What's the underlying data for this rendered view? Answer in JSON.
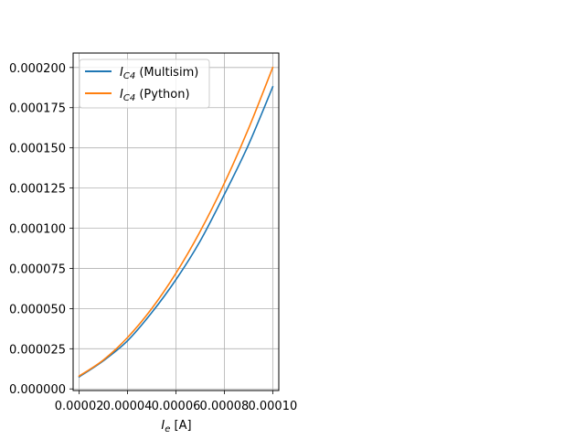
{
  "chart_data": {
    "type": "line",
    "xlabel_main": "I",
    "xlabel_sub": "e",
    "xlabel_unit": " [A]",
    "ylabel": "",
    "xlim": [
      1.75e-05,
      0.0001025
    ],
    "ylim": [
      -1e-06,
      0.000209
    ],
    "xticks": [
      2e-05,
      4e-05,
      6e-05,
      8e-05,
      0.0001
    ],
    "xtick_labels": [
      "0.00002",
      "0.00004",
      "0.00006",
      "0.00008",
      "0.00010"
    ],
    "yticks": [
      0,
      2.5e-05,
      5e-05,
      7.5e-05,
      0.0001,
      0.000125,
      0.00015,
      0.000175,
      0.0002
    ],
    "ytick_labels": [
      "0.000000",
      "0.000025",
      "0.000050",
      "0.000075",
      "0.000100",
      "0.000125",
      "0.000150",
      "0.000175",
      "0.000200"
    ],
    "grid": true,
    "legend_position": "upper-left",
    "x": [
      2e-05,
      3e-05,
      4e-05,
      5e-05,
      6e-05,
      7e-05,
      8e-05,
      9e-05,
      0.0001
    ],
    "series": [
      {
        "name_main": "I",
        "name_sub": "C4",
        "name_rest": " (Multisim)",
        "color": "#1f77b4",
        "values": [
          7.5e-06,
          1.75e-05,
          3e-05,
          4.75e-05,
          6.8e-05,
          9.2e-05,
          0.000121,
          0.000152,
          0.000188
        ]
      },
      {
        "name_main": "I",
        "name_sub": "C4",
        "name_rest": " (Python)",
        "color": "#ff7f0e",
        "values": [
          8e-06,
          1.8e-05,
          3.2e-05,
          5e-05,
          7.2e-05,
          9.8e-05,
          0.000128,
          0.000162,
          0.0002
        ]
      }
    ]
  }
}
